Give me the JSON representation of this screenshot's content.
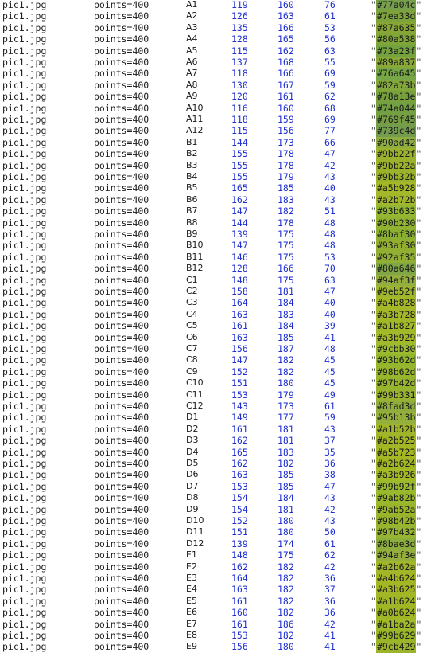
{
  "rows": [
    {
      "file": "pic1.jpg",
      "points": "points=400",
      "well": "A1",
      "r": "119",
      "g": "160",
      "b": "76",
      "hex": "#77a04c"
    },
    {
      "file": "pic1.jpg",
      "points": "points=400",
      "well": "A2",
      "r": "126",
      "g": "163",
      "b": "61",
      "hex": "#7ea33d"
    },
    {
      "file": "pic1.jpg",
      "points": "points=400",
      "well": "A3",
      "r": "135",
      "g": "166",
      "b": "53",
      "hex": "#87a635"
    },
    {
      "file": "pic1.jpg",
      "points": "points=400",
      "well": "A4",
      "r": "128",
      "g": "165",
      "b": "56",
      "hex": "#80a538"
    },
    {
      "file": "pic1.jpg",
      "points": "points=400",
      "well": "A5",
      "r": "115",
      "g": "162",
      "b": "63",
      "hex": "#73a23f"
    },
    {
      "file": "pic1.jpg",
      "points": "points=400",
      "well": "A6",
      "r": "137",
      "g": "168",
      "b": "55",
      "hex": "#89a837"
    },
    {
      "file": "pic1.jpg",
      "points": "points=400",
      "well": "A7",
      "r": "118",
      "g": "166",
      "b": "69",
      "hex": "#76a645"
    },
    {
      "file": "pic1.jpg",
      "points": "points=400",
      "well": "A8",
      "r": "130",
      "g": "167",
      "b": "59",
      "hex": "#82a73b"
    },
    {
      "file": "pic1.jpg",
      "points": "points=400",
      "well": "A9",
      "r": "120",
      "g": "161",
      "b": "62",
      "hex": "#78a13e"
    },
    {
      "file": "pic1.jpg",
      "points": "points=400",
      "well": "A10",
      "r": "116",
      "g": "160",
      "b": "68",
      "hex": "#74a044"
    },
    {
      "file": "pic1.jpg",
      "points": "points=400",
      "well": "A11",
      "r": "118",
      "g": "159",
      "b": "69",
      "hex": "#769f45"
    },
    {
      "file": "pic1.jpg",
      "points": "points=400",
      "well": "A12",
      "r": "115",
      "g": "156",
      "b": "77",
      "hex": "#739c4d"
    },
    {
      "file": "pic1.jpg",
      "points": "points=400",
      "well": "B1",
      "r": "144",
      "g": "173",
      "b": "66",
      "hex": "#90ad42"
    },
    {
      "file": "pic1.jpg",
      "points": "points=400",
      "well": "B2",
      "r": "155",
      "g": "178",
      "b": "47",
      "hex": "#9bb22f"
    },
    {
      "file": "pic1.jpg",
      "points": "points=400",
      "well": "B3",
      "r": "155",
      "g": "178",
      "b": "42",
      "hex": "#9bb22a"
    },
    {
      "file": "pic1.jpg",
      "points": "points=400",
      "well": "B4",
      "r": "155",
      "g": "179",
      "b": "43",
      "hex": "#9bb32b"
    },
    {
      "file": "pic1.jpg",
      "points": "points=400",
      "well": "B5",
      "r": "165",
      "g": "185",
      "b": "40",
      "hex": "#a5b928"
    },
    {
      "file": "pic1.jpg",
      "points": "points=400",
      "well": "B6",
      "r": "162",
      "g": "183",
      "b": "43",
      "hex": "#a2b72b"
    },
    {
      "file": "pic1.jpg",
      "points": "points=400",
      "well": "B7",
      "r": "147",
      "g": "182",
      "b": "51",
      "hex": "#93b633"
    },
    {
      "file": "pic1.jpg",
      "points": "points=400",
      "well": "B8",
      "r": "144",
      "g": "178",
      "b": "48",
      "hex": "#90b230"
    },
    {
      "file": "pic1.jpg",
      "points": "points=400",
      "well": "B9",
      "r": "139",
      "g": "175",
      "b": "48",
      "hex": "#8baf30"
    },
    {
      "file": "pic1.jpg",
      "points": "points=400",
      "well": "B10",
      "r": "147",
      "g": "175",
      "b": "48",
      "hex": "#93af30"
    },
    {
      "file": "pic1.jpg",
      "points": "points=400",
      "well": "B11",
      "r": "146",
      "g": "175",
      "b": "53",
      "hex": "#92af35"
    },
    {
      "file": "pic1.jpg",
      "points": "points=400",
      "well": "B12",
      "r": "128",
      "g": "166",
      "b": "70",
      "hex": "#80a646"
    },
    {
      "file": "pic1.jpg",
      "points": "points=400",
      "well": "C1",
      "r": "148",
      "g": "175",
      "b": "63",
      "hex": "#94af3f"
    },
    {
      "file": "pic1.jpg",
      "points": "points=400",
      "well": "C2",
      "r": "158",
      "g": "181",
      "b": "47",
      "hex": "#9eb52f"
    },
    {
      "file": "pic1.jpg",
      "points": "points=400",
      "well": "C3",
      "r": "164",
      "g": "184",
      "b": "40",
      "hex": "#a4b828"
    },
    {
      "file": "pic1.jpg",
      "points": "points=400",
      "well": "C4",
      "r": "163",
      "g": "183",
      "b": "40",
      "hex": "#a3b728"
    },
    {
      "file": "pic1.jpg",
      "points": "points=400",
      "well": "C5",
      "r": "161",
      "g": "184",
      "b": "39",
      "hex": "#a1b827"
    },
    {
      "file": "pic1.jpg",
      "points": "points=400",
      "well": "C6",
      "r": "163",
      "g": "185",
      "b": "41",
      "hex": "#a3b929"
    },
    {
      "file": "pic1.jpg",
      "points": "points=400",
      "well": "C7",
      "r": "156",
      "g": "187",
      "b": "48",
      "hex": "#9cbb30"
    },
    {
      "file": "pic1.jpg",
      "points": "points=400",
      "well": "C8",
      "r": "147",
      "g": "182",
      "b": "45",
      "hex": "#93b62d"
    },
    {
      "file": "pic1.jpg",
      "points": "points=400",
      "well": "C9",
      "r": "152",
      "g": "182",
      "b": "45",
      "hex": "#98b62d"
    },
    {
      "file": "pic1.jpg",
      "points": "points=400",
      "well": "C10",
      "r": "151",
      "g": "180",
      "b": "45",
      "hex": "#97b42d"
    },
    {
      "file": "pic1.jpg",
      "points": "points=400",
      "well": "C11",
      "r": "153",
      "g": "179",
      "b": "49",
      "hex": "#99b331"
    },
    {
      "file": "pic1.jpg",
      "points": "points=400",
      "well": "C12",
      "r": "143",
      "g": "173",
      "b": "61",
      "hex": "#8fad3d"
    },
    {
      "file": "pic1.jpg",
      "points": "points=400",
      "well": "D1",
      "r": "149",
      "g": "177",
      "b": "59",
      "hex": "#95b13b"
    },
    {
      "file": "pic1.jpg",
      "points": "points=400",
      "well": "D2",
      "r": "161",
      "g": "181",
      "b": "43",
      "hex": "#a1b52b"
    },
    {
      "file": "pic1.jpg",
      "points": "points=400",
      "well": "D3",
      "r": "162",
      "g": "181",
      "b": "37",
      "hex": "#a2b525"
    },
    {
      "file": "pic1.jpg",
      "points": "points=400",
      "well": "D4",
      "r": "165",
      "g": "183",
      "b": "35",
      "hex": "#a5b723"
    },
    {
      "file": "pic1.jpg",
      "points": "points=400",
      "well": "D5",
      "r": "162",
      "g": "182",
      "b": "36",
      "hex": "#a2b624"
    },
    {
      "file": "pic1.jpg",
      "points": "points=400",
      "well": "D6",
      "r": "163",
      "g": "185",
      "b": "38",
      "hex": "#a3b926"
    },
    {
      "file": "pic1.jpg",
      "points": "points=400",
      "well": "D7",
      "r": "153",
      "g": "185",
      "b": "47",
      "hex": "#99b92f"
    },
    {
      "file": "pic1.jpg",
      "points": "points=400",
      "well": "D8",
      "r": "154",
      "g": "184",
      "b": "43",
      "hex": "#9ab82b"
    },
    {
      "file": "pic1.jpg",
      "points": "points=400",
      "well": "D9",
      "r": "154",
      "g": "181",
      "b": "42",
      "hex": "#9ab52a"
    },
    {
      "file": "pic1.jpg",
      "points": "points=400",
      "well": "D10",
      "r": "152",
      "g": "180",
      "b": "43",
      "hex": "#98b42b"
    },
    {
      "file": "pic1.jpg",
      "points": "points=400",
      "well": "D11",
      "r": "151",
      "g": "180",
      "b": "50",
      "hex": "#97b432"
    },
    {
      "file": "pic1.jpg",
      "points": "points=400",
      "well": "D12",
      "r": "139",
      "g": "174",
      "b": "61",
      "hex": "#8bae3d"
    },
    {
      "file": "pic1.jpg",
      "points": "points=400",
      "well": "E1",
      "r": "148",
      "g": "175",
      "b": "62",
      "hex": "#94af3e"
    },
    {
      "file": "pic1.jpg",
      "points": "points=400",
      "well": "E2",
      "r": "162",
      "g": "182",
      "b": "42",
      "hex": "#a2b62a"
    },
    {
      "file": "pic1.jpg",
      "points": "points=400",
      "well": "E3",
      "r": "164",
      "g": "182",
      "b": "36",
      "hex": "#a4b624"
    },
    {
      "file": "pic1.jpg",
      "points": "points=400",
      "well": "E4",
      "r": "163",
      "g": "182",
      "b": "37",
      "hex": "#a3b625"
    },
    {
      "file": "pic1.jpg",
      "points": "points=400",
      "well": "E5",
      "r": "161",
      "g": "182",
      "b": "36",
      "hex": "#a1b624"
    },
    {
      "file": "pic1.jpg",
      "points": "points=400",
      "well": "E6",
      "r": "160",
      "g": "182",
      "b": "36",
      "hex": "#a0b624"
    },
    {
      "file": "pic1.jpg",
      "points": "points=400",
      "well": "E7",
      "r": "161",
      "g": "186",
      "b": "42",
      "hex": "#a1ba2a"
    },
    {
      "file": "pic1.jpg",
      "points": "points=400",
      "well": "E8",
      "r": "153",
      "g": "182",
      "b": "41",
      "hex": "#99b629"
    },
    {
      "file": "pic1.jpg",
      "points": "points=400",
      "well": "E9",
      "r": "156",
      "g": "180",
      "b": "41",
      "hex": "#9cb429"
    }
  ]
}
